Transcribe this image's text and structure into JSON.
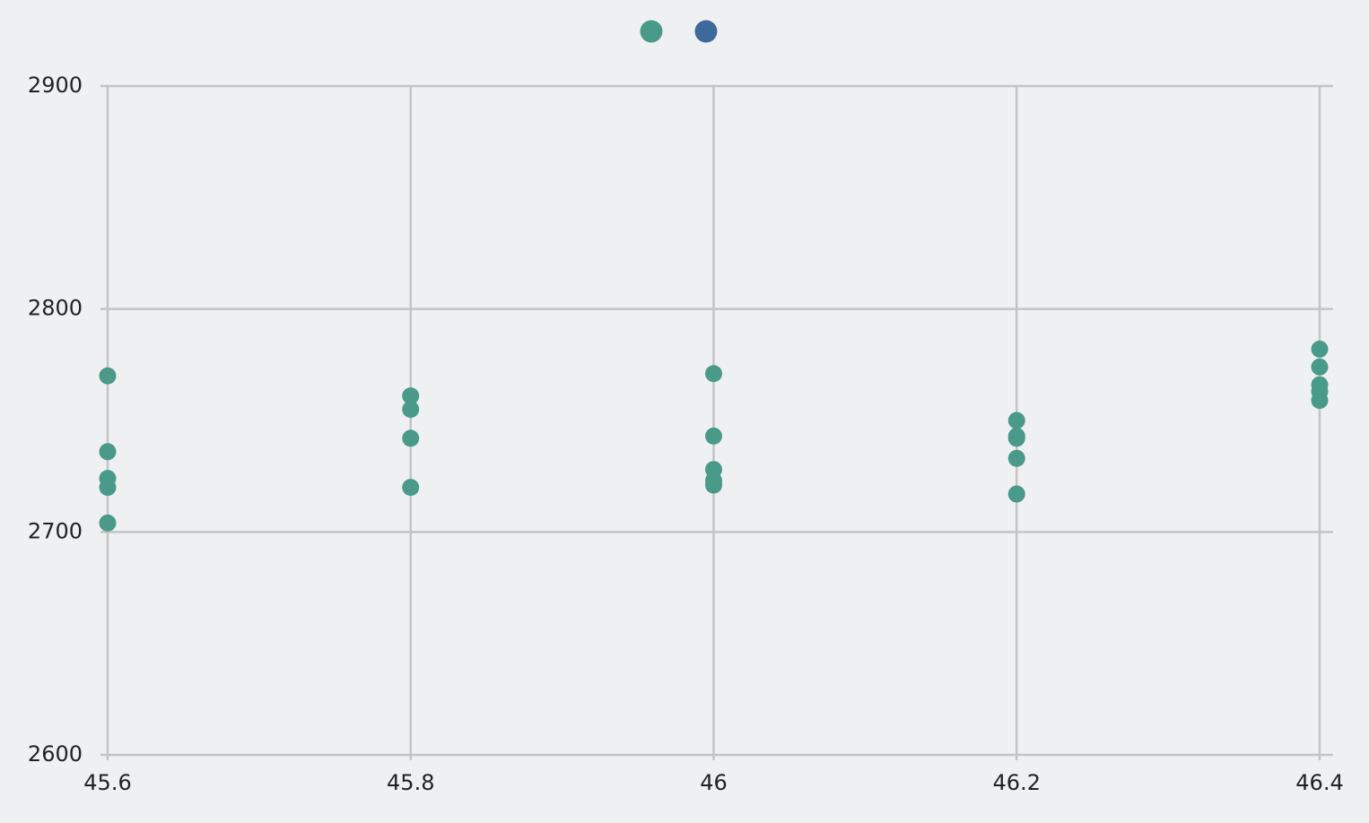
{
  "chart_data": {
    "type": "scatter",
    "series": [
      {
        "color": "#4a9a8a",
        "x": [
          45.6,
          45.6,
          45.6,
          45.6,
          45.6,
          45.8,
          45.8,
          45.8,
          45.8,
          46,
          46,
          46,
          46,
          46,
          46.2,
          46.2,
          46.2,
          46.2,
          46.2,
          46.4,
          46.4,
          46.4,
          46.4,
          46.4
        ],
        "y": [
          2770,
          2736,
          2724,
          2720,
          2704,
          2761,
          2755,
          2742,
          2720,
          2771,
          2743,
          2728,
          2723,
          2721,
          2750,
          2743,
          2742,
          2733,
          2717,
          2782,
          2774,
          2766,
          2763,
          2759
        ]
      },
      {
        "color": "#3d6a9a",
        "x": [],
        "y": []
      }
    ],
    "xlim": [
      45.6,
      46.4
    ],
    "xticks": [
      45.6,
      45.8,
      46,
      46.2,
      46.4
    ],
    "ylim": [
      2600,
      2900
    ],
    "yticks": [
      2600,
      2700,
      2800,
      2900
    ],
    "grid": true
  }
}
